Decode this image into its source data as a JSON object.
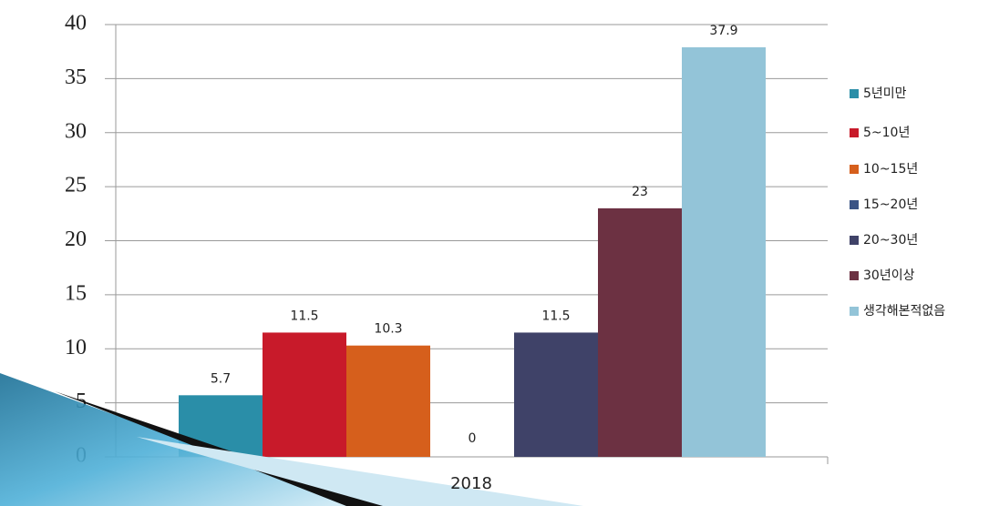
{
  "chart_data": {
    "type": "bar",
    "categories": [
      "2018"
    ],
    "series": [
      {
        "name": "5년미만",
        "color": "#2a8ea8",
        "values": [
          5.7
        ]
      },
      {
        "name": "5~10년",
        "color": "#c81a2a",
        "values": [
          11.5
        ]
      },
      {
        "name": "10~15년",
        "color": "#d65f1c",
        "values": [
          10.3
        ]
      },
      {
        "name": "15~20년",
        "color": "#3a5385",
        "values": [
          0
        ]
      },
      {
        "name": "20~30년",
        "color": "#3f4268",
        "values": [
          11.5
        ]
      },
      {
        "name": "30년이상",
        "color": "#6c3142",
        "values": [
          23
        ],
        "label_color": "#c0392b"
      },
      {
        "name": "생각해본적없음",
        "color": "#93c4d8",
        "values": [
          37.9
        ]
      }
    ],
    "ylim": [
      0,
      40
    ],
    "yticks": [
      0,
      5,
      10,
      15,
      20,
      25,
      30,
      35,
      40
    ],
    "grid": true,
    "legend": "right"
  }
}
